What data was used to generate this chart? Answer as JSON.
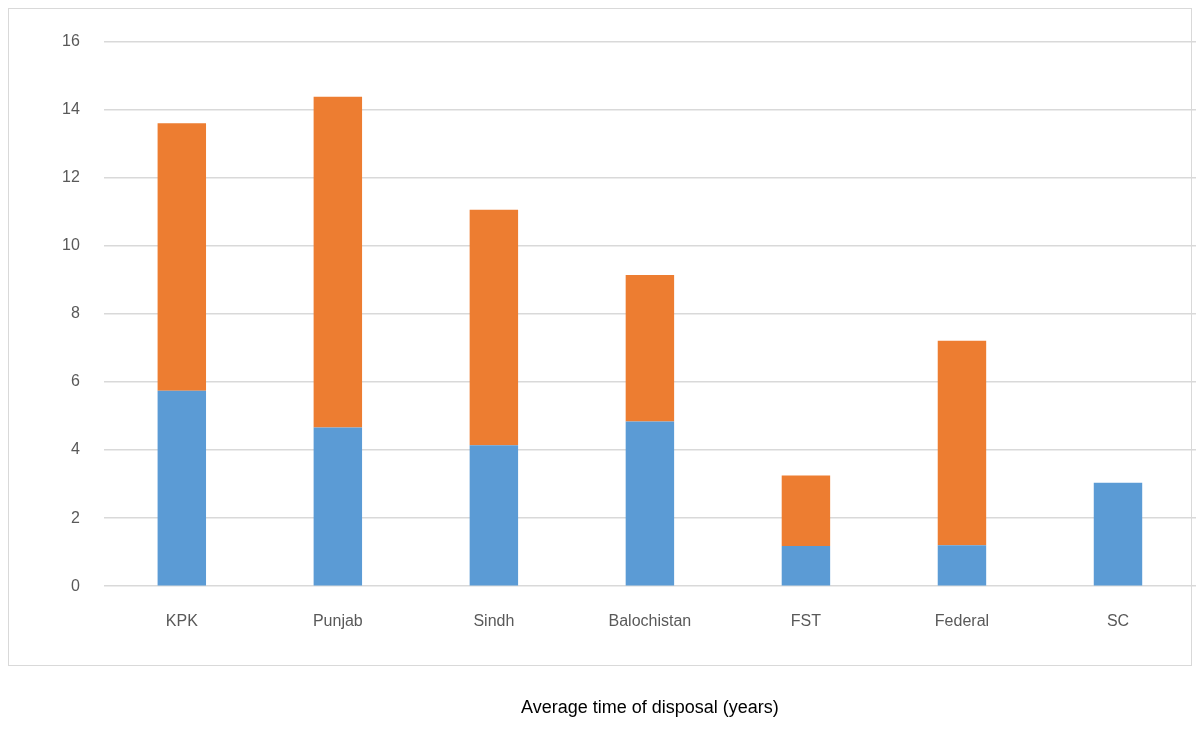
{
  "chart_data": {
    "type": "bar",
    "xlabel": "Average time of disposal (years)",
    "categories": [
      "KPK",
      "Punjab",
      "Sindh",
      "Balochistan",
      "FST",
      "Federal",
      "SC"
    ],
    "stacked": true,
    "series": [
      {
        "color": "#5b9bd5",
        "values": [
          5.74,
          4.66,
          4.14,
          4.84,
          1.18,
          1.2,
          3.04
        ]
      },
      {
        "color": "#ed7d31",
        "values": [
          7.86,
          9.72,
          6.92,
          4.3,
          2.07,
          6.01,
          null
        ]
      }
    ],
    "ylim": [
      0,
      16
    ],
    "yticks": [
      0,
      2,
      4,
      6,
      8,
      10,
      12,
      14,
      16
    ],
    "grid": "y",
    "legend": false
  }
}
